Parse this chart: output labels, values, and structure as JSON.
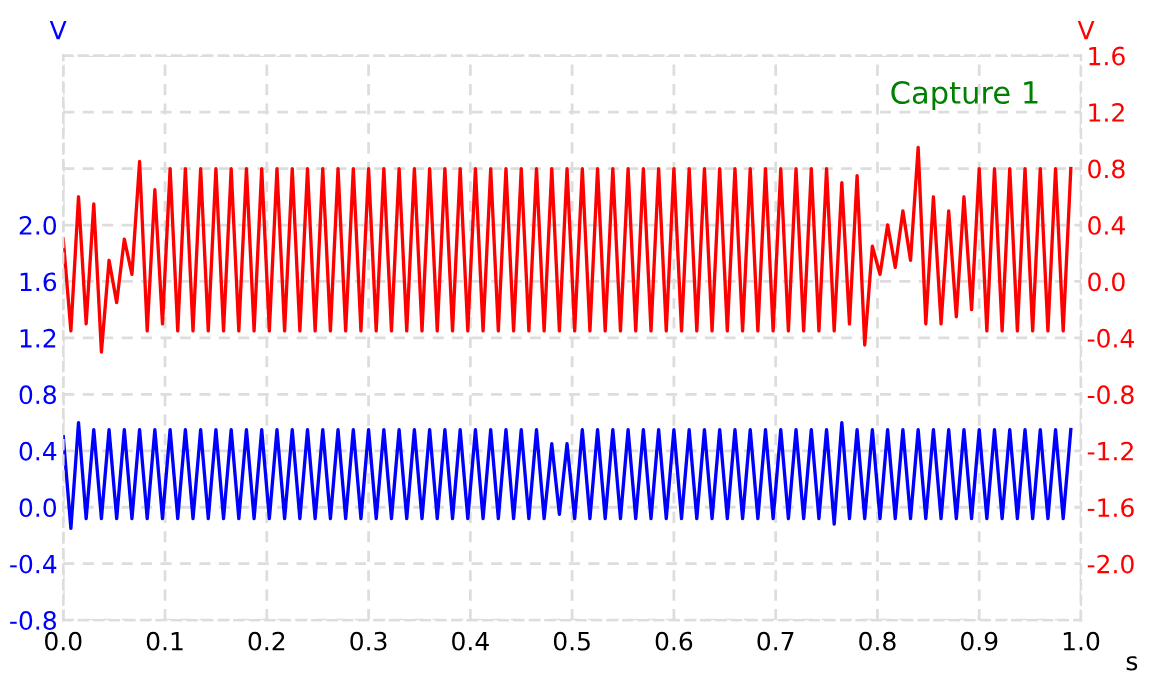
{
  "chart_data": {
    "type": "line",
    "xlabel": "s",
    "ylabel": "V",
    "y2label": "V",
    "annotations": [
      "Capture 1"
    ],
    "xlim": [
      0,
      1.0
    ],
    "xticks": [
      {
        "value": 0,
        "label": "0.0"
      },
      0.1,
      0.2,
      0.3,
      0.4,
      0.5,
      0.6,
      0.7,
      0.8,
      0.9,
      {
        "value": 1.0,
        "label": "1.0"
      }
    ],
    "ylim": [
      -0.8,
      3.2
    ],
    "yticks": [
      -0.8,
      -0.4,
      {
        "value": 0,
        "label": "0.0"
      },
      0.4,
      0.8,
      1.2,
      1.6,
      {
        "value": 2.0,
        "label": "2.0"
      },
      {
        "value": 2.4,
        "label": null
      },
      {
        "value": 2.8,
        "label": null
      },
      {
        "value": 3.2,
        "label": null
      }
    ],
    "y2lim": [
      -2.4,
      1.6
    ],
    "y2ticks": [
      {
        "value": -2.4,
        "label": null
      },
      {
        "value": -2.0,
        "label": "-2.0"
      },
      -1.6,
      -1.2,
      -0.8,
      -0.4,
      {
        "value": 0,
        "label": "0.0"
      },
      0.4,
      0.8,
      1.2,
      1.6
    ],
    "grid": true,
    "legend": false,
    "marker": "none",
    "line_style": "solid",
    "x": [
      0,
      0.0075,
      0.015,
      0.0225,
      0.03,
      0.0375,
      0.045,
      0.0525,
      0.06,
      0.0675,
      0.075,
      0.0825,
      0.09,
      0.0975,
      0.105,
      0.1125,
      0.12,
      0.1275,
      0.135,
      0.1425,
      0.15,
      0.1575,
      0.165,
      0.1725,
      0.18,
      0.1875,
      0.195,
      0.2025,
      0.21,
      0.2175,
      0.225,
      0.2325,
      0.24,
      0.2475,
      0.255,
      0.2625,
      0.27,
      0.2775,
      0.285,
      0.2925,
      0.3,
      0.3075,
      0.315,
      0.3225,
      0.33,
      0.3375,
      0.345,
      0.3525,
      0.36,
      0.3675,
      0.375,
      0.3825,
      0.39,
      0.3975,
      0.405,
      0.4125,
      0.42,
      0.4275,
      0.435,
      0.4425,
      0.45,
      0.4575,
      0.465,
      0.4725,
      0.48,
      0.4875,
      0.495,
      0.5025,
      0.51,
      0.5175,
      0.525,
      0.5325,
      0.54,
      0.5475,
      0.555,
      0.5625,
      0.57,
      0.5775,
      0.585,
      0.5925,
      0.6,
      0.6075,
      0.615,
      0.6225,
      0.63,
      0.6375,
      0.645,
      0.6525,
      0.66,
      0.6675,
      0.675,
      0.6825,
      0.69,
      0.6975,
      0.705,
      0.7125,
      0.72,
      0.7275,
      0.735,
      0.7425,
      0.75,
      0.7575,
      0.765,
      0.7725,
      0.78,
      0.7875,
      0.795,
      0.8025,
      0.81,
      0.8175,
      0.825,
      0.8325,
      0.84,
      0.8475,
      0.855,
      0.8625,
      0.87,
      0.8775,
      0.885,
      0.8925,
      0.9,
      0.9075,
      0.915,
      0.9225,
      0.93,
      0.9375,
      0.945,
      0.9525,
      0.96,
      0.9675,
      0.975,
      0.9825,
      0.99
    ],
    "series": [
      {
        "color": "#ff0000",
        "axis": "y2",
        "values": [
          0.3,
          -0.35,
          0.6,
          -0.3,
          0.55,
          -0.5,
          0.15,
          -0.15,
          0.3,
          0.05,
          0.85,
          -0.35,
          0.65,
          -0.3,
          0.8,
          -0.35,
          0.8,
          -0.35,
          0.8,
          -0.35,
          0.8,
          -0.35,
          0.8,
          -0.35,
          0.8,
          -0.35,
          0.8,
          -0.35,
          0.8,
          -0.35,
          0.8,
          -0.35,
          0.8,
          -0.35,
          0.8,
          -0.35,
          0.8,
          -0.35,
          0.8,
          -0.35,
          0.8,
          -0.35,
          0.8,
          -0.35,
          0.8,
          -0.35,
          0.8,
          -0.35,
          0.8,
          -0.35,
          0.8,
          -0.35,
          0.8,
          -0.35,
          0.8,
          -0.35,
          0.8,
          -0.35,
          0.8,
          -0.35,
          0.8,
          -0.35,
          0.8,
          -0.35,
          0.8,
          -0.35,
          0.8,
          -0.35,
          0.8,
          -0.35,
          0.8,
          -0.35,
          0.8,
          -0.35,
          0.8,
          -0.35,
          0.8,
          -0.35,
          0.8,
          -0.35,
          0.8,
          -0.35,
          0.8,
          -0.35,
          0.8,
          -0.35,
          0.8,
          -0.35,
          0.8,
          -0.35,
          0.8,
          -0.35,
          0.8,
          -0.35,
          0.8,
          -0.35,
          0.8,
          -0.35,
          0.8,
          -0.35,
          0.8,
          -0.35,
          0.7,
          -0.3,
          0.75,
          -0.45,
          0.25,
          0.05,
          0.4,
          0.1,
          0.5,
          0.15,
          0.95,
          -0.3,
          0.6,
          -0.3,
          0.5,
          -0.25,
          0.6,
          -0.2,
          0.8,
          -0.35,
          0.8,
          -0.35,
          0.8,
          -0.35,
          0.8,
          -0.35,
          0.8,
          -0.35,
          0.8,
          -0.35,
          0.8
        ]
      },
      {
        "color": "#0000ff",
        "axis": "y",
        "values": [
          0.5,
          -0.15,
          0.6,
          -0.08,
          0.55,
          -0.08,
          0.55,
          -0.08,
          0.55,
          -0.08,
          0.55,
          -0.08,
          0.55,
          -0.08,
          0.55,
          -0.08,
          0.55,
          -0.08,
          0.55,
          -0.08,
          0.55,
          -0.08,
          0.55,
          -0.08,
          0.55,
          -0.08,
          0.55,
          -0.08,
          0.55,
          -0.08,
          0.55,
          -0.08,
          0.55,
          -0.08,
          0.55,
          -0.08,
          0.55,
          -0.08,
          0.55,
          -0.08,
          0.55,
          -0.08,
          0.55,
          -0.08,
          0.55,
          -0.08,
          0.55,
          -0.08,
          0.55,
          -0.08,
          0.55,
          -0.08,
          0.55,
          -0.08,
          0.55,
          -0.08,
          0.55,
          -0.08,
          0.55,
          -0.08,
          0.55,
          -0.08,
          0.55,
          -0.08,
          0.45,
          -0.05,
          0.45,
          -0.08,
          0.55,
          -0.08,
          0.55,
          -0.08,
          0.55,
          -0.08,
          0.55,
          -0.08,
          0.55,
          -0.08,
          0.55,
          -0.08,
          0.55,
          -0.08,
          0.55,
          -0.08,
          0.55,
          -0.08,
          0.55,
          -0.08,
          0.55,
          -0.08,
          0.55,
          -0.08,
          0.55,
          -0.08,
          0.55,
          -0.08,
          0.55,
          -0.08,
          0.55,
          -0.08,
          0.55,
          -0.12,
          0.6,
          -0.08,
          0.55,
          -0.08,
          0.55,
          -0.08,
          0.55,
          -0.08,
          0.55,
          -0.08,
          0.55,
          -0.08,
          0.55,
          -0.08,
          0.55,
          -0.08,
          0.55,
          -0.08,
          0.55,
          -0.08,
          0.55,
          -0.08,
          0.55,
          -0.08,
          0.55,
          -0.08,
          0.55,
          -0.08,
          0.55,
          -0.08,
          0.55
        ]
      }
    ]
  }
}
